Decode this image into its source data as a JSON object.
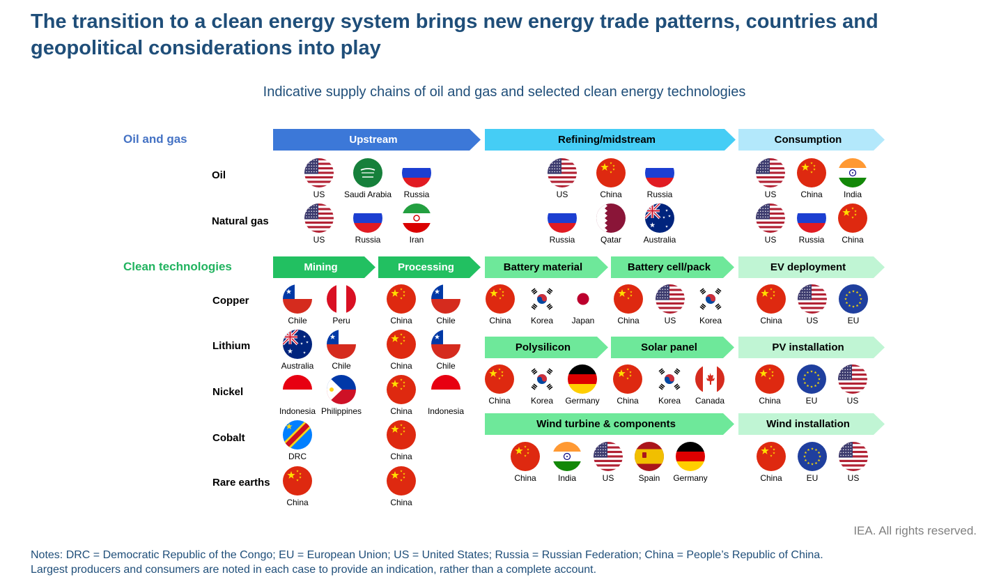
{
  "title": "The transition to a clean energy system brings new energy trade patterns, countries and geopolitical considerations into play",
  "subtitle": "Indicative supply chains of oil and gas and selected clean energy technologies",
  "colors": {
    "title": "#1f4e79",
    "oil_gas": "#4472c4",
    "clean": "#21b35f",
    "upstream": "#3c78d8",
    "midstream": "#45cdf5",
    "consumption": "#b3e8fb",
    "mining": "#22c061",
    "battery": "#6ee89a",
    "deployment": "#c0f5d4"
  },
  "sections": {
    "oil_gas": "Oil and gas",
    "clean": "Clean technologies"
  },
  "rows": {
    "oil": "Oil",
    "natural_gas": "Natural gas",
    "copper": "Copper",
    "lithium": "Lithium",
    "nickel": "Nickel",
    "cobalt": "Cobalt",
    "rare_earths": "Rare earths"
  },
  "stages": {
    "upstream": "Upstream",
    "refining": "Refining/midstream",
    "consumption": "Consumption",
    "mining": "Mining",
    "processing": "Processing",
    "battery_material": "Battery material",
    "battery_cell": "Battery cell/pack",
    "ev_deployment": "EV deployment",
    "polysilicon": "Polysilicon",
    "solar_panel": "Solar panel",
    "pv_installation": "PV installation",
    "wind_turbine": "Wind turbine & components",
    "wind_installation": "Wind installation"
  },
  "oil": {
    "upstream": [
      "US",
      "Saudi Arabia",
      "Russia"
    ],
    "refining": [
      "US",
      "China",
      "Russia"
    ],
    "consumption": [
      "US",
      "China",
      "India"
    ]
  },
  "natural_gas": {
    "upstream": [
      "US",
      "Russia",
      "Iran"
    ],
    "refining": [
      "Russia",
      "Qatar",
      "Australia"
    ],
    "consumption": [
      "US",
      "Russia",
      "China"
    ]
  },
  "copper": {
    "mining": [
      "Chile",
      "Peru"
    ],
    "processing": [
      "China",
      "Chile"
    ]
  },
  "lithium": {
    "mining": [
      "Australia",
      "Chile"
    ],
    "processing": [
      "China",
      "Chile"
    ]
  },
  "nickel": {
    "mining": [
      "Indonesia",
      "Philippines"
    ],
    "processing": [
      "China",
      "Indonesia"
    ]
  },
  "cobalt": {
    "mining": [
      "DRC"
    ],
    "processing": [
      "China"
    ]
  },
  "rare_earths": {
    "mining": [
      "China"
    ],
    "processing": [
      "China"
    ]
  },
  "battery": {
    "material": [
      "China",
      "Korea",
      "Japan"
    ],
    "cell": [
      "China",
      "US",
      "Korea"
    ],
    "ev": [
      "China",
      "US",
      "EU"
    ]
  },
  "solar": {
    "polysilicon": [
      "China",
      "Korea",
      "Germany"
    ],
    "panel": [
      "China",
      "Korea",
      "Canada"
    ],
    "pv": [
      "China",
      "EU",
      "US"
    ]
  },
  "wind": {
    "turbine": [
      "China",
      "India",
      "US",
      "Spain",
      "Germany"
    ],
    "installation": [
      "China",
      "EU",
      "US"
    ]
  },
  "copyright": "IEA. All rights reserved.",
  "notes": [
    "Notes: DRC = Democratic Republic of the Congo; EU = European Union; US = United States; Russia = Russian Federation; China = People’s Republic of China.",
    "Largest producers and consumers are noted in each case to provide an indication, rather than a complete account."
  ]
}
